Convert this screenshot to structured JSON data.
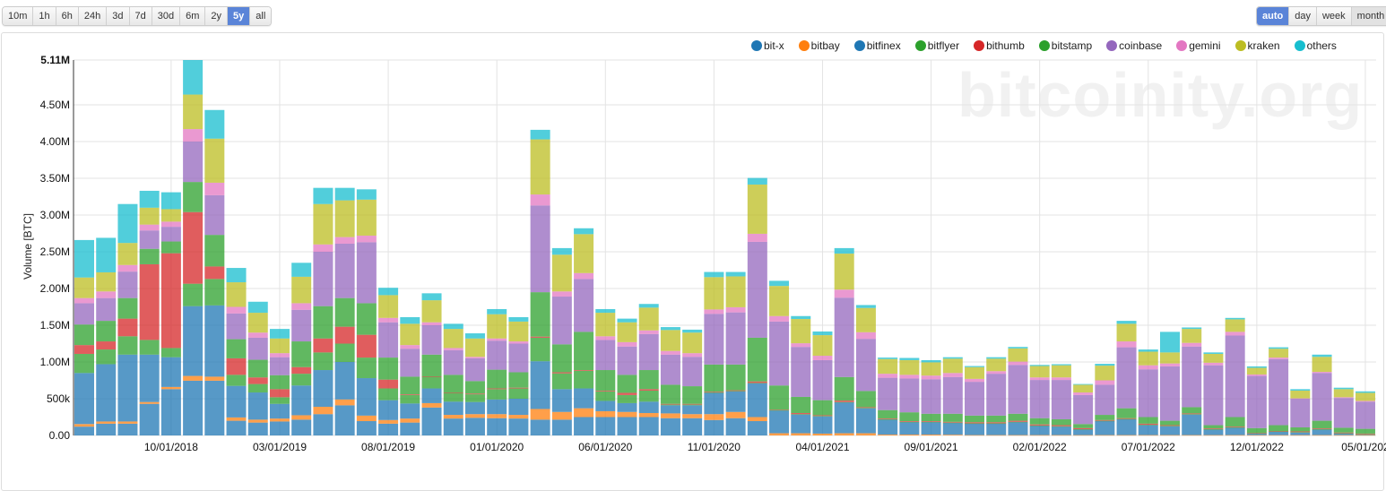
{
  "range_buttons": [
    "10m",
    "1h",
    "6h",
    "24h",
    "3d",
    "7d",
    "30d",
    "6m",
    "2y",
    "5y",
    "all"
  ],
  "range_active": "5y",
  "resolution_buttons": [
    "auto",
    "day",
    "week",
    "month"
  ],
  "resolution_active": "auto",
  "resolution_pressed": "month",
  "watermark": "bitcoinity.org",
  "chart_data": {
    "type": "bar",
    "stacked": true,
    "ylabel": "Volume [BTC]",
    "ylim": [
      0,
      5.11
    ],
    "y_unit": "M BTC",
    "y_ticks": [
      "0.00",
      "500k",
      "1.00M",
      "1.50M",
      "2.00M",
      "2.50M",
      "3.00M",
      "3.50M",
      "4.00M",
      "4.50M",
      "5.11M"
    ],
    "y_tick_values": [
      0,
      0.5,
      1,
      1.5,
      2,
      2.5,
      3,
      3.5,
      4,
      4.5,
      5.11
    ],
    "x_ticks": [
      "10/01/2018",
      "03/01/2019",
      "08/01/2019",
      "01/01/2020",
      "06/01/2020",
      "11/01/2020",
      "04/01/2021",
      "09/01/2021",
      "02/01/2022",
      "07/01/2022",
      "12/01/2022",
      "05/01/202"
    ],
    "grid": true,
    "legend_position": "top-right",
    "categories": [
      "06/01/2018",
      "07/01/2018",
      "08/01/2018",
      "09/01/2018",
      "10/01/2018",
      "11/01/2018",
      "12/01/2018",
      "01/01/2019",
      "02/01/2019",
      "03/01/2019",
      "04/01/2019",
      "05/01/2019",
      "06/01/2019",
      "07/01/2019",
      "08/01/2019",
      "09/01/2019",
      "10/01/2019",
      "11/01/2019",
      "12/01/2019",
      "01/01/2020",
      "02/01/2020",
      "03/01/2020",
      "04/01/2020",
      "05/01/2020",
      "06/01/2020",
      "07/01/2020",
      "08/01/2020",
      "09/01/2020",
      "10/01/2020",
      "11/01/2020",
      "12/01/2020",
      "01/01/2021",
      "02/01/2021",
      "03/01/2021",
      "04/01/2021",
      "05/01/2021",
      "06/01/2021",
      "07/01/2021",
      "08/01/2021",
      "09/01/2021",
      "10/01/2021",
      "11/01/2021",
      "12/01/2021",
      "01/01/2022",
      "02/01/2022",
      "03/01/2022",
      "04/01/2022",
      "05/01/2022",
      "06/01/2022",
      "07/01/2022",
      "08/01/2022",
      "09/01/2022",
      "10/01/2022",
      "11/01/2022",
      "12/01/2022",
      "01/01/2023",
      "02/01/2023",
      "03/01/2023",
      "04/01/2023",
      "05/01/2023"
    ],
    "series": [
      {
        "name": "bit-x",
        "color": "#1f77b4",
        "values": [
          0.12,
          0.16,
          0.16,
          0.43,
          0.63,
          0.745,
          0.745,
          0.2,
          0.175,
          0.19,
          0.215,
          0.29,
          0.41,
          0.195,
          0.16,
          0.175,
          0.38,
          0.23,
          0.24,
          0.235,
          0.23,
          0.215,
          0.215,
          0.25,
          0.25,
          0.25,
          0.25,
          0.235,
          0.235,
          0.21,
          0.235,
          0.195,
          0,
          0,
          0,
          0,
          0,
          0,
          0,
          0,
          0,
          0,
          0,
          0,
          0,
          0,
          0,
          0,
          0,
          0,
          0,
          0,
          0,
          0,
          0,
          0,
          0,
          0,
          0,
          0
        ]
      },
      {
        "name": "bitbay",
        "color": "#ff7f0e",
        "values": [
          0.035,
          0.03,
          0.03,
          0.025,
          0.03,
          0.065,
          0.055,
          0.045,
          0.04,
          0.04,
          0.06,
          0.1,
          0.08,
          0.075,
          0.05,
          0.055,
          0.06,
          0.05,
          0.05,
          0.055,
          0.05,
          0.145,
          0.105,
          0.12,
          0.08,
          0.07,
          0.055,
          0.065,
          0.055,
          0.08,
          0.085,
          0.055,
          0.03,
          0.03,
          0.025,
          0.03,
          0.03,
          0.012,
          0.012,
          0.012,
          0.01,
          0.005,
          0.005,
          0.005,
          0.005,
          0.005,
          0.005,
          0.005,
          0.005,
          0.005,
          0.005,
          0.005,
          0.005,
          0.005,
          0.005,
          0.005,
          0.005,
          0.005,
          0.005,
          0.005
        ]
      },
      {
        "name": "bitfinex",
        "color": "#1f77b4",
        "values": [
          0.695,
          0.78,
          0.91,
          0.645,
          0.405,
          0.95,
          0.97,
          0.43,
          0.37,
          0.2,
          0.405,
          0.5,
          0.51,
          0.51,
          0.27,
          0.205,
          0.2,
          0.18,
          0.165,
          0.2,
          0.22,
          0.65,
          0.31,
          0.27,
          0.14,
          0.12,
          0.155,
          0.11,
          0.12,
          0.29,
          0.28,
          0.46,
          0.31,
          0.255,
          0.235,
          0.42,
          0.34,
          0.203,
          0.168,
          0.168,
          0.16,
          0.155,
          0.155,
          0.175,
          0.125,
          0.115,
          0.075,
          0.19,
          0.215,
          0.135,
          0.12,
          0.28,
          0.075,
          0.1,
          0.02,
          0.045,
          0.035,
          0.075,
          0.02,
          0.007
        ]
      },
      {
        "name": "bitflyer",
        "color": "#2ca02c",
        "values": [
          0.26,
          0.2,
          0.25,
          0.2,
          0.125,
          0.305,
          0.36,
          0.15,
          0.115,
          0.09,
          0.16,
          0.24,
          0.25,
          0.28,
          0.16,
          0.115,
          0.16,
          0.12,
          0.105,
          0.14,
          0.14,
          0.32,
          0.215,
          0.24,
          0.13,
          0.11,
          0.15,
          0.01,
          0.01,
          0.005,
          0.005,
          0.005,
          0.005,
          0.005,
          0.005,
          0.005,
          0.005,
          0.005,
          0.005,
          0.005,
          0.005,
          0.005,
          0.005,
          0.005,
          0.005,
          0.005,
          0.005,
          0.005,
          0.005,
          0.005,
          0.005,
          0.005,
          0.005,
          0.005,
          0.005,
          0.005,
          0.005,
          0.005,
          0.005,
          0.005
        ]
      },
      {
        "name": "bithumb",
        "color": "#d62728",
        "values": [
          0.12,
          0.11,
          0.24,
          1.03,
          1.29,
          0.975,
          0.17,
          0.225,
          0.09,
          0.11,
          0.09,
          0.19,
          0.23,
          0.31,
          0.12,
          0.01,
          0.005,
          0.005,
          0.01,
          0.01,
          0.01,
          0.015,
          0.015,
          0.01,
          0.01,
          0.03,
          0.02,
          0.01,
          0.01,
          0.01,
          0.01,
          0.02,
          0.005,
          0.015,
          0.01,
          0.02,
          0.01,
          0.01,
          0.01,
          0.01,
          0.01,
          0.015,
          0.015,
          0.015,
          0.015,
          0.015,
          0.015,
          0.01,
          0.01,
          0.015,
          0.01,
          0.01,
          0.01,
          0.01,
          0.005,
          0.005,
          0.01,
          0.01,
          0.01,
          0.008
        ]
      },
      {
        "name": "bitstamp",
        "color": "#2ca02c",
        "values": [
          0.28,
          0.28,
          0.28,
          0.21,
          0.16,
          0.41,
          0.43,
          0.26,
          0.24,
          0.19,
          0.35,
          0.44,
          0.39,
          0.43,
          0.3,
          0.24,
          0.295,
          0.24,
          0.17,
          0.255,
          0.21,
          0.605,
          0.38,
          0.52,
          0.28,
          0.245,
          0.26,
          0.26,
          0.24,
          0.37,
          0.35,
          0.595,
          0.33,
          0.22,
          0.205,
          0.32,
          0.22,
          0.115,
          0.12,
          0.1,
          0.11,
          0.09,
          0.09,
          0.095,
          0.085,
          0.08,
          0.055,
          0.07,
          0.135,
          0.09,
          0.06,
          0.085,
          0.045,
          0.13,
          0.065,
          0.08,
          0.055,
          0.105,
          0.065,
          0.065
        ]
      },
      {
        "name": "coinbase",
        "color": "#9467bd",
        "values": [
          0.29,
          0.31,
          0.36,
          0.25,
          0.2,
          0.55,
          0.54,
          0.35,
          0.3,
          0.245,
          0.43,
          0.74,
          0.74,
          0.83,
          0.48,
          0.38,
          0.4,
          0.335,
          0.31,
          0.395,
          0.39,
          1.18,
          0.65,
          0.72,
          0.41,
          0.385,
          0.49,
          0.41,
          0.4,
          0.69,
          0.71,
          1.305,
          0.87,
          0.68,
          0.545,
          1.08,
          0.71,
          0.44,
          0.46,
          0.47,
          0.5,
          0.46,
          0.57,
          0.665,
          0.52,
          0.535,
          0.395,
          0.41,
          0.83,
          0.65,
          0.74,
          0.825,
          0.815,
          1.11,
          0.71,
          0.9,
          0.39,
          0.65,
          0.405,
          0.37
        ]
      },
      {
        "name": "gemini",
        "color": "#e377c2",
        "values": [
          0.07,
          0.09,
          0.09,
          0.08,
          0.07,
          0.17,
          0.17,
          0.09,
          0.07,
          0.055,
          0.09,
          0.1,
          0.09,
          0.09,
          0.06,
          0.05,
          0.04,
          0.03,
          0.02,
          0.03,
          0.03,
          0.15,
          0.07,
          0.08,
          0.05,
          0.06,
          0.05,
          0.05,
          0.05,
          0.06,
          0.07,
          0.11,
          0.075,
          0.05,
          0.06,
          0.11,
          0.09,
          0.055,
          0.05,
          0.05,
          0.055,
          0.04,
          0.035,
          0.045,
          0.035,
          0.035,
          0.035,
          0.06,
          0.08,
          0.055,
          0.04,
          0.05,
          0.035,
          0.05,
          0.02,
          0.02,
          0.005,
          0.015,
          0.01,
          0.01
        ]
      },
      {
        "name": "kraken",
        "color": "#bcbd22",
        "values": [
          0.28,
          0.26,
          0.3,
          0.23,
          0.17,
          0.47,
          0.6,
          0.335,
          0.27,
          0.2,
          0.36,
          0.55,
          0.5,
          0.49,
          0.31,
          0.29,
          0.3,
          0.26,
          0.25,
          0.33,
          0.27,
          0.75,
          0.5,
          0.53,
          0.32,
          0.27,
          0.31,
          0.285,
          0.28,
          0.44,
          0.42,
          0.67,
          0.41,
          0.33,
          0.28,
          0.49,
          0.33,
          0.2,
          0.2,
          0.18,
          0.195,
          0.16,
          0.17,
          0.18,
          0.155,
          0.165,
          0.105,
          0.2,
          0.24,
          0.185,
          0.15,
          0.19,
          0.12,
          0.17,
          0.09,
          0.12,
          0.105,
          0.205,
          0.11,
          0.11
        ]
      },
      {
        "name": "others",
        "color": "#17becf",
        "values": [
          0.51,
          0.47,
          0.53,
          0.23,
          0.23,
          0.47,
          0.39,
          0.195,
          0.15,
          0.13,
          0.19,
          0.22,
          0.17,
          0.14,
          0.1,
          0.09,
          0.095,
          0.07,
          0.07,
          0.07,
          0.06,
          0.13,
          0.09,
          0.08,
          0.05,
          0.05,
          0.05,
          0.04,
          0.04,
          0.07,
          0.06,
          0.09,
          0.07,
          0.04,
          0.05,
          0.075,
          0.04,
          0.02,
          0.03,
          0.03,
          0.02,
          0.015,
          0.02,
          0.02,
          0.015,
          0.015,
          0.01,
          0.025,
          0.04,
          0.03,
          0.28,
          0.02,
          0.02,
          0.02,
          0.02,
          0.02,
          0.02,
          0.03,
          0.02,
          0.02
        ]
      }
    ]
  }
}
